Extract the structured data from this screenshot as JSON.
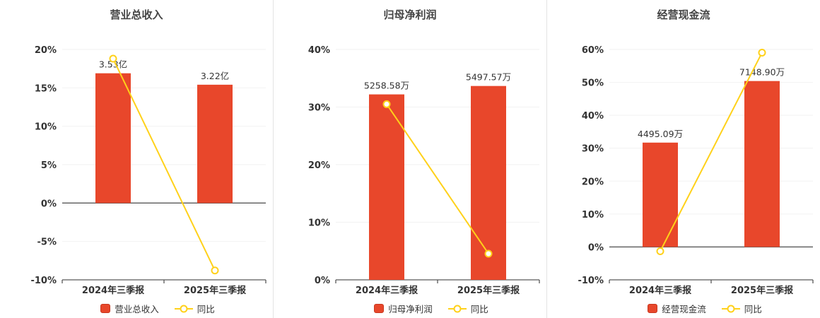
{
  "colors": {
    "bar": "#e8472b",
    "bar_border": "#c8381f",
    "line": "#ffd11a",
    "axis": "#595959",
    "grid": "#f2f2f2",
    "text": "#333333"
  },
  "chart_data": [
    {
      "type": "bar",
      "title": "营业总收入",
      "categories": [
        "2024年三季报",
        "2025年三季报"
      ],
      "bar_series": {
        "name": "营业总收入",
        "labels": [
          "3.53亿",
          "3.22亿"
        ],
        "values_pct_axis": [
          16.9,
          15.41
        ]
      },
      "line_series": {
        "name": "同比",
        "values": [
          18.8,
          -8.78
        ]
      },
      "ylim": [
        -10,
        20
      ],
      "ytick_step": 5,
      "ytick_labels": [
        "-10%",
        "-5%",
        "0%",
        "5%",
        "10%",
        "15%",
        "20%"
      ],
      "legend": [
        "营业总收入",
        "同比"
      ],
      "grid": false,
      "legend_position": "bottom"
    },
    {
      "type": "bar",
      "title": "归母净利润",
      "categories": [
        "2024年三季报",
        "2025年三季报"
      ],
      "bar_series": {
        "name": "归母净利润",
        "labels": [
          "5258.58万",
          "5497.57万"
        ],
        "values_pct_axis": [
          32.2,
          33.66
        ]
      },
      "line_series": {
        "name": "同比",
        "values": [
          30.5,
          4.54
        ]
      },
      "ylim": [
        0,
        40
      ],
      "ytick_step": 10,
      "ytick_labels": [
        "0%",
        "10%",
        "20%",
        "30%",
        "40%"
      ],
      "legend": [
        "归母净利润",
        "同比"
      ],
      "grid": false,
      "legend_position": "bottom"
    },
    {
      "type": "bar",
      "title": "经营现金流",
      "categories": [
        "2024年三季报",
        "2025年三季报"
      ],
      "bar_series": {
        "name": "经营现金流",
        "labels": [
          "4495.09万",
          "7148.90万"
        ],
        "values_pct_axis": [
          31.7,
          50.41
        ]
      },
      "line_series": {
        "name": "同比",
        "values": [
          -1.3,
          59.04
        ]
      },
      "ylim": [
        -10,
        60
      ],
      "ytick_step": 10,
      "ytick_labels": [
        "-10%",
        "0%",
        "10%",
        "20%",
        "30%",
        "40%",
        "50%",
        "60%"
      ],
      "legend": [
        "经营现金流",
        "同比"
      ],
      "grid": false,
      "legend_position": "bottom"
    }
  ]
}
